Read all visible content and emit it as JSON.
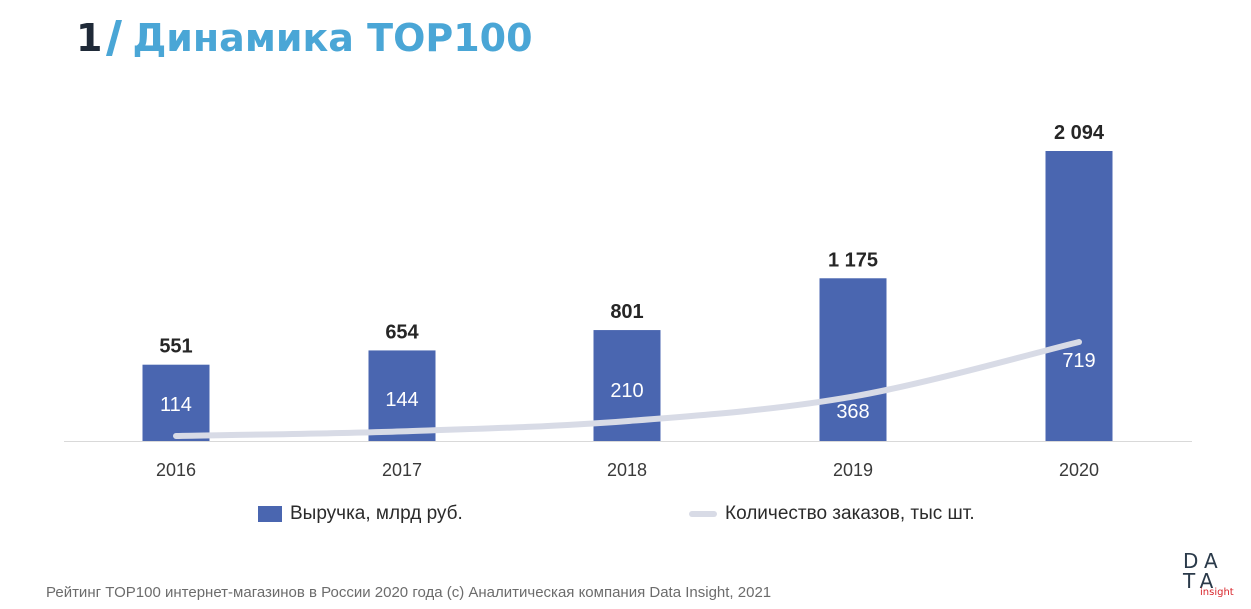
{
  "header": {
    "number": "1",
    "title": "Динамика TOP100",
    "accent_color": "#4aa6d6"
  },
  "chart_data": {
    "type": "bar",
    "categories": [
      "2016",
      "2017",
      "2018",
      "2019",
      "2020"
    ],
    "series": [
      {
        "name": "Выручка, млрд руб.",
        "kind": "bar",
        "color": "#4a66b0",
        "values": [
          551,
          654,
          801,
          1175,
          2094
        ],
        "labels": [
          "551",
          "654",
          "801",
          "1 175",
          "2 094"
        ]
      },
      {
        "name": "Количество заказов, тыс шт.",
        "kind": "line",
        "color": "#d8dbe6",
        "values": [
          114,
          144,
          210,
          368,
          719
        ],
        "labels": [
          "114",
          "144",
          "210",
          "368",
          "719"
        ]
      }
    ],
    "legend": "bottom"
  },
  "footer": {
    "text": "Рейтинг TOP100 интернет-магазинов в России 2020 года (с) Аналитическая компания Data Insight, 2021"
  },
  "logo": {
    "line1": "DA",
    "line2": "TA",
    "sub": "insight"
  }
}
